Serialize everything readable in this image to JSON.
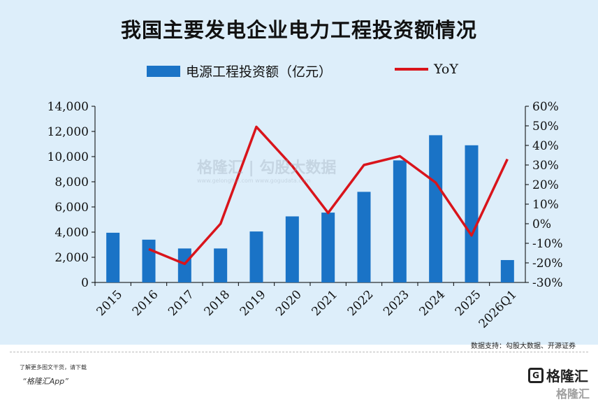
{
  "chart_data": {
    "type": "bar",
    "title": "我国主要发电企业电力工程投资额情况",
    "categories": [
      "2015",
      "2016",
      "2017",
      "2018",
      "2019",
      "2020",
      "2021",
      "2022",
      "2023",
      "2024",
      "2025",
      "2026Q1"
    ],
    "series": [
      {
        "name": "电源工程投资额（亿元）",
        "type": "bar",
        "axis": "left",
        "values": [
          3950,
          3400,
          2700,
          2700,
          4050,
          5250,
          5550,
          7200,
          9700,
          11700,
          10900,
          1780
        ]
      },
      {
        "name": "YoY",
        "type": "line",
        "axis": "right",
        "values": [
          null,
          -13,
          -20.5,
          0,
          49.5,
          29.5,
          5.5,
          30,
          34.5,
          21,
          -6,
          33
        ]
      }
    ],
    "ylim": [
      0,
      14000
    ],
    "y_ticks": [
      "0",
      "2,000",
      "4,000",
      "6,000",
      "8,000",
      "10,000",
      "12,000",
      "14,000"
    ],
    "y2lim": [
      -30,
      60
    ],
    "y2_ticks": [
      "-30%",
      "-20%",
      "-10%",
      "0%",
      "10%",
      "20%",
      "30%",
      "40%",
      "50%",
      "60%"
    ],
    "colors": {
      "bar": "#1a73c6",
      "line": "#d9141b",
      "background": "#ddeefa"
    }
  },
  "watermark": {
    "main": "格隆汇 | 勾股大数据",
    "sub": "www.gelonghui.com   www.gogudata.com"
  },
  "source": "数据支持：勾股大数据、开源证券",
  "footer": {
    "note": "了解更多图文干货，请下载",
    "app": "“格隆汇App”",
    "logo": "格隆汇",
    "logo2": "格隆汇"
  }
}
